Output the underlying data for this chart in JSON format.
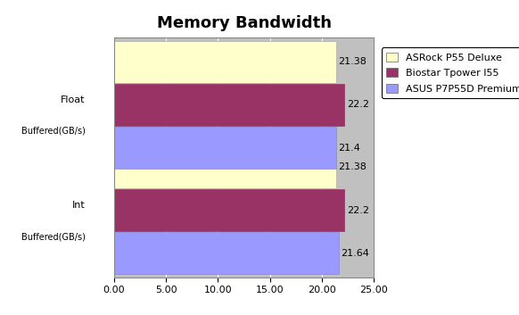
{
  "title": "Memory Bandwidth",
  "group_labels_line1": [
    "Float",
    "Int"
  ],
  "group_labels_line2": [
    "Buffered(GB/s)",
    "Buffered(GB/s)"
  ],
  "series": [
    {
      "label": "ASRock P55 Deluxe",
      "color": "#FFFFCC",
      "edgecolor": "#AAAAAA",
      "values": [
        21.38,
        21.38
      ]
    },
    {
      "label": "Biostar Tpower I55",
      "color": "#993366",
      "edgecolor": "#993366",
      "values": [
        22.2,
        22.2
      ]
    },
    {
      "label": "ASUS P7P55D Premium",
      "color": "#9999FF",
      "edgecolor": "#8888DD",
      "values": [
        21.4,
        21.64
      ]
    }
  ],
  "xlim": [
    0,
    25
  ],
  "xticks": [
    0.0,
    5.0,
    10.0,
    15.0,
    20.0,
    25.0
  ],
  "xtick_labels": [
    "0.00",
    "5.00",
    "10.00",
    "15.00",
    "20.00",
    "25.00"
  ],
  "plot_bg_color": "#C0C0C0",
  "bar_height": 0.18,
  "title_fontsize": 13,
  "tick_fontsize": 8,
  "label_fontsize": 8,
  "legend_fontsize": 8,
  "value_fontsize": 8
}
